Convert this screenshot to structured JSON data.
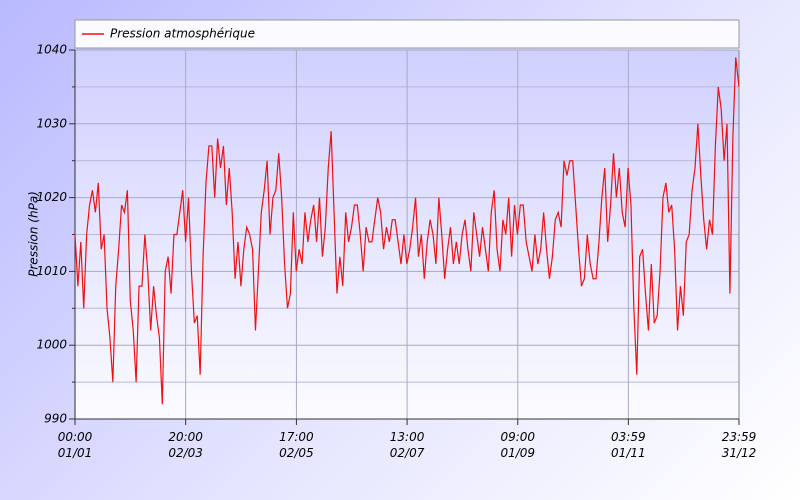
{
  "chart_data": {
    "type": "line",
    "ylabel": "Pression (hPa)",
    "x": [
      0,
      1.6,
      3.2,
      4.8,
      6.4,
      8,
      9.6,
      11.2,
      12.8,
      14.4,
      16,
      17.6,
      19.2,
      20.8,
      22.4,
      24,
      25.6,
      27.2,
      28.8,
      30.4,
      32,
      33.6,
      35.2,
      36.8,
      38.4,
      40,
      41.6,
      43.2,
      44.8,
      46.4,
      48,
      49.6,
      51.2,
      52.8,
      54.4,
      56,
      57.6,
      59.2,
      60.8,
      62.4,
      64,
      65.6,
      67.2,
      68.8,
      70.4,
      72,
      73.6,
      75.2,
      76.8,
      78.4,
      80,
      81.6,
      83.2,
      84.8,
      86.4,
      88,
      89.6,
      91.2,
      92.8,
      94.4,
      96,
      97.6,
      99.2,
      100.8,
      102.4,
      104,
      105.6,
      107.2,
      108.8,
      110.4,
      112,
      113.6,
      115.2,
      116.8,
      118.4,
      120,
      121.6,
      123.2,
      124.8,
      126.4,
      128,
      129.6,
      131.2,
      132.8,
      134.4,
      136,
      137.6,
      139.2,
      140.8,
      142.4,
      144,
      145.6,
      147.2,
      148.8,
      150.4,
      152,
      153.6,
      155.2,
      156.8,
      158.4,
      160,
      161.6,
      163.2,
      164.8,
      166.4,
      168,
      169.6,
      171.2,
      172.8,
      174.4,
      176,
      177.6,
      179.2,
      180.8,
      182.4,
      184,
      185.6,
      187.2,
      188.8,
      190.4,
      192,
      193.6,
      195.2,
      196.8,
      198.4,
      200,
      201.6,
      203.2,
      204.8,
      206.4,
      208,
      209.6,
      211.2,
      212.8,
      214.4,
      216,
      217.6,
      219.2,
      220.8,
      222.4,
      224,
      225.6,
      227.2,
      228.8,
      230.4,
      232,
      233.6,
      235.2,
      236.8,
      238.4,
      240,
      241.6,
      243.2,
      244.8,
      246.4,
      248,
      249.6,
      251.2,
      252.8,
      254.4,
      256,
      257.6,
      259.2,
      260.8,
      262.4,
      264,
      265.6,
      267.2,
      268.8,
      270.4,
      272,
      273.6,
      275.2,
      276.8,
      278.4,
      280,
      281.6,
      283.2,
      284.8,
      286.4,
      288,
      289.6,
      291.2,
      292.8,
      294.4,
      296,
      297.6,
      299.2,
      300.8,
      302.4,
      304,
      305.6,
      307.2,
      308.8,
      310.4,
      312,
      313.6,
      315.2,
      316.8,
      318.4,
      320,
      321.6,
      323.2,
      324.8,
      326.4,
      328,
      329.6,
      331.2,
      332.8,
      334.4,
      336,
      337.6,
      339.2,
      340.8,
      342.4,
      344,
      345.6,
      347.2,
      348.8,
      350.4,
      352,
      353.6,
      355.2,
      356.8,
      358.4,
      360,
      361.6,
      363.2,
      364.99
    ],
    "series": [
      {
        "name": "Pression atmosphérique",
        "color": "#ee1111",
        "values": [
          1015,
          1008,
          1014,
          1005,
          1015,
          1019,
          1021,
          1018,
          1022,
          1013,
          1015,
          1005,
          1001,
          995,
          1008,
          1013,
          1019,
          1018,
          1021,
          1006,
          1002,
          995,
          1008,
          1008,
          1015,
          1010,
          1002,
          1008,
          1004,
          1001,
          992,
          1010,
          1012,
          1007,
          1015,
          1015,
          1018,
          1021,
          1014,
          1020,
          1010,
          1003,
          1004,
          996,
          1012,
          1022,
          1027,
          1027,
          1020,
          1028,
          1024,
          1027,
          1019,
          1024,
          1018,
          1009,
          1014,
          1008,
          1013,
          1016,
          1015,
          1013,
          1002,
          1010,
          1018,
          1021,
          1025,
          1015,
          1020,
          1021,
          1026,
          1020,
          1011,
          1005,
          1007,
          1018,
          1010,
          1013,
          1011,
          1018,
          1014,
          1017,
          1019,
          1014,
          1020,
          1012,
          1016,
          1024,
          1029,
          1018,
          1007,
          1012,
          1008,
          1018,
          1014,
          1016,
          1019,
          1019,
          1015,
          1010,
          1016,
          1014,
          1014,
          1017,
          1020,
          1018,
          1013,
          1016,
          1014,
          1017,
          1017,
          1014,
          1011,
          1015,
          1011,
          1013,
          1016,
          1020,
          1012,
          1015,
          1009,
          1014,
          1017,
          1015,
          1011,
          1020,
          1015,
          1009,
          1013,
          1016,
          1011,
          1014,
          1011,
          1015,
          1017,
          1013,
          1010,
          1018,
          1015,
          1012,
          1016,
          1013,
          1010,
          1018,
          1021,
          1013,
          1010,
          1017,
          1015,
          1020,
          1012,
          1019,
          1015,
          1019,
          1019,
          1014,
          1012,
          1010,
          1015,
          1011,
          1013,
          1018,
          1013,
          1009,
          1012,
          1017,
          1018,
          1016,
          1025,
          1023,
          1025,
          1025,
          1019,
          1013,
          1008,
          1009,
          1015,
          1011,
          1009,
          1009,
          1014,
          1020,
          1024,
          1014,
          1019,
          1026,
          1020,
          1024,
          1018,
          1016,
          1024,
          1019,
          1005,
          996,
          1012,
          1013,
          1007,
          1002,
          1011,
          1003,
          1004,
          1010,
          1020,
          1022,
          1018,
          1019,
          1013,
          1002,
          1008,
          1004,
          1014,
          1015,
          1021,
          1024,
          1030,
          1023,
          1017,
          1013,
          1017,
          1015,
          1027,
          1035,
          1032,
          1025,
          1030,
          1007,
          1028,
          1039,
          1035
        ]
      }
    ],
    "xlim": [
      0,
      364.99
    ],
    "xticks": [
      {
        "value": 0,
        "label": "00:00\n01/01"
      },
      {
        "value": 60.83,
        "label": "20:00\n02/03"
      },
      {
        "value": 121.71,
        "label": "17:00\n02/05"
      },
      {
        "value": 182.54,
        "label": "13:00\n02/07"
      },
      {
        "value": 243.38,
        "label": "09:00\n01/09"
      },
      {
        "value": 304.17,
        "label": "03:59\n01/11"
      },
      {
        "value": 364.99,
        "label": "23:59\n31/12"
      }
    ],
    "ylim": [
      990,
      1040
    ],
    "yticks": [
      990,
      1000,
      1010,
      1020,
      1030,
      1040
    ],
    "yminor": [
      995,
      1005,
      1015,
      1025,
      1035
    ],
    "grid": true,
    "legend": "top"
  }
}
